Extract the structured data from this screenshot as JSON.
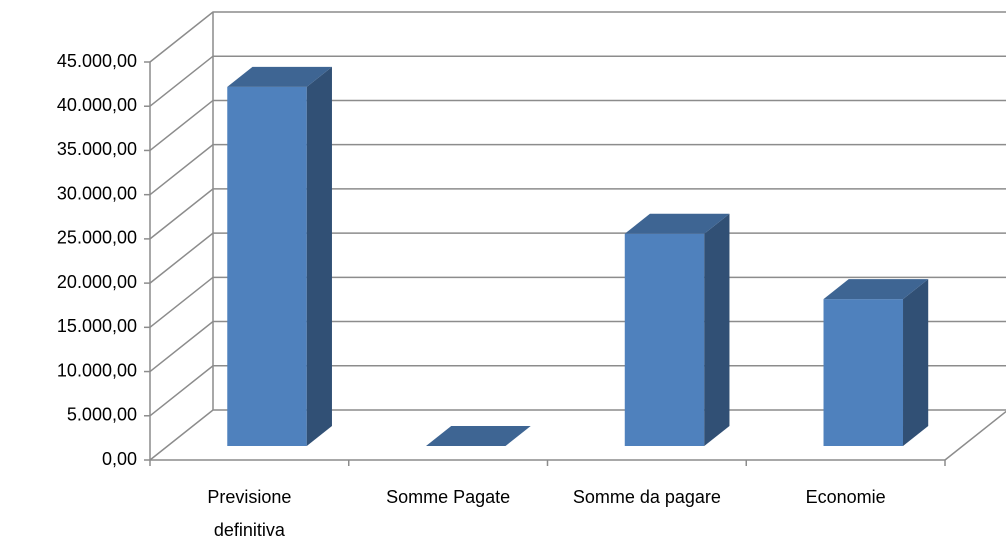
{
  "chart_data": {
    "type": "bar3d",
    "categories": [
      "Previsione definitiva",
      "Somme Pagate",
      "Somme da pagare",
      "Economie"
    ],
    "values": [
      40600,
      0,
      24000,
      16600
    ],
    "color": "#4f81bd",
    "ylim": [
      0,
      45000
    ],
    "yticks": [
      {
        "value": 0,
        "label": "0,00"
      },
      {
        "value": 5000,
        "label": "5.000,00"
      },
      {
        "value": 10000,
        "label": "10.000,00"
      },
      {
        "value": 15000,
        "label": "15.000,00"
      },
      {
        "value": 20000,
        "label": "20.000,00"
      },
      {
        "value": 25000,
        "label": "25.000,00"
      },
      {
        "value": 30000,
        "label": "30.000,00"
      },
      {
        "value": 35000,
        "label": "35.000,00"
      },
      {
        "value": 40000,
        "label": "40.000,00"
      },
      {
        "value": 45000,
        "label": "45.000,00"
      }
    ],
    "grid": true
  }
}
